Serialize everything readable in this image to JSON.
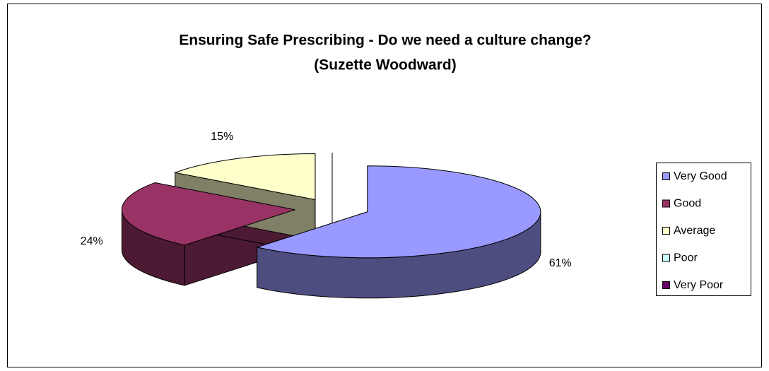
{
  "chart_data": {
    "type": "pie",
    "title": [
      "Ensuring Safe Prescribing - Do we need a culture change?",
      "(Suzette Woodward)"
    ],
    "categories": [
      "Very Good",
      "Good",
      "Average",
      "Poor",
      "Very Poor"
    ],
    "values": [
      61,
      24,
      15,
      0,
      0
    ],
    "value_labels": [
      "61%",
      "24%",
      "15%",
      null,
      null
    ],
    "colors": [
      "#9999ff",
      "#993366",
      "#ffffcc",
      "#ccffff",
      "#660066"
    ],
    "legend": "right",
    "three_d": true,
    "exploded": true
  }
}
